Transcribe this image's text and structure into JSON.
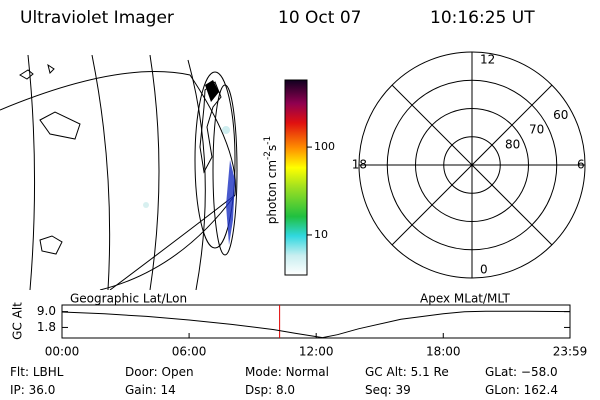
{
  "header": {
    "title": "Ultraviolet Imager",
    "date": "10 Oct 07",
    "time": "10:16:25 UT"
  },
  "colorbar": {
    "label": {
      "unit": "photon cm",
      "exp1": "-2",
      "s": "s",
      "exp2": "-1"
    },
    "scale": "log",
    "ylim": [
      3.5,
      580
    ],
    "yticks": [
      10,
      100
    ]
  },
  "polar": {
    "rlim": [
      90,
      50
    ],
    "rings": [
      80,
      70,
      60
    ],
    "mlt_ticks": [
      12,
      6,
      0,
      18
    ]
  },
  "timeline": {
    "left_title": "Geographic Lat/Lon",
    "right_title": "Apex MLat/MLT",
    "ylabel": "GC Alt",
    "ylim": [
      -3,
      12
    ],
    "yticks": [
      {
        "value": 9,
        "label": "9.0"
      },
      1.8
    ],
    "xlim": [
      0,
      23.983
    ],
    "xticks": [
      {
        "value": 0,
        "label": "00:00"
      },
      {
        "value": 6,
        "label": "06:00"
      },
      {
        "value": 12,
        "label": "12:00"
      },
      {
        "value": 18,
        "label": "18:00"
      },
      {
        "value": 23.983,
        "label": "23:59"
      }
    ],
    "x": [
      0,
      2,
      4,
      6,
      8,
      10,
      11,
      12.3,
      13,
      14,
      16,
      18,
      19,
      20,
      22,
      23.983
    ],
    "values": [
      8.8,
      8.0,
      6.8,
      5.2,
      3.2,
      0.8,
      -0.8,
      -2.8,
      -1.5,
      1.2,
      5.5,
      8.0,
      8.9,
      9.2,
      9.2,
      9.0
    ],
    "color": "#000000",
    "marker_x": 10.274,
    "marker_color": "#e00000"
  },
  "footer": [
    [
      {
        "label": "Flt:",
        "value": "LBHL"
      },
      {
        "label": "Door:",
        "value": "Open"
      },
      {
        "label": "Mode:",
        "value": "Normal"
      },
      {
        "label": "GC Alt:",
        "value": "5.1 Re"
      },
      {
        "label": "GLat:",
        "value": "−58.0"
      }
    ],
    [
      {
        "label": "IP:",
        "value": "36.0"
      },
      {
        "label": "Gain:",
        "value": "14"
      },
      {
        "label": "Dsp:",
        "value": "8.0"
      },
      {
        "label": "Seq:",
        "value": "39"
      },
      {
        "label": "GLon:",
        "value": "162.4"
      }
    ]
  ]
}
